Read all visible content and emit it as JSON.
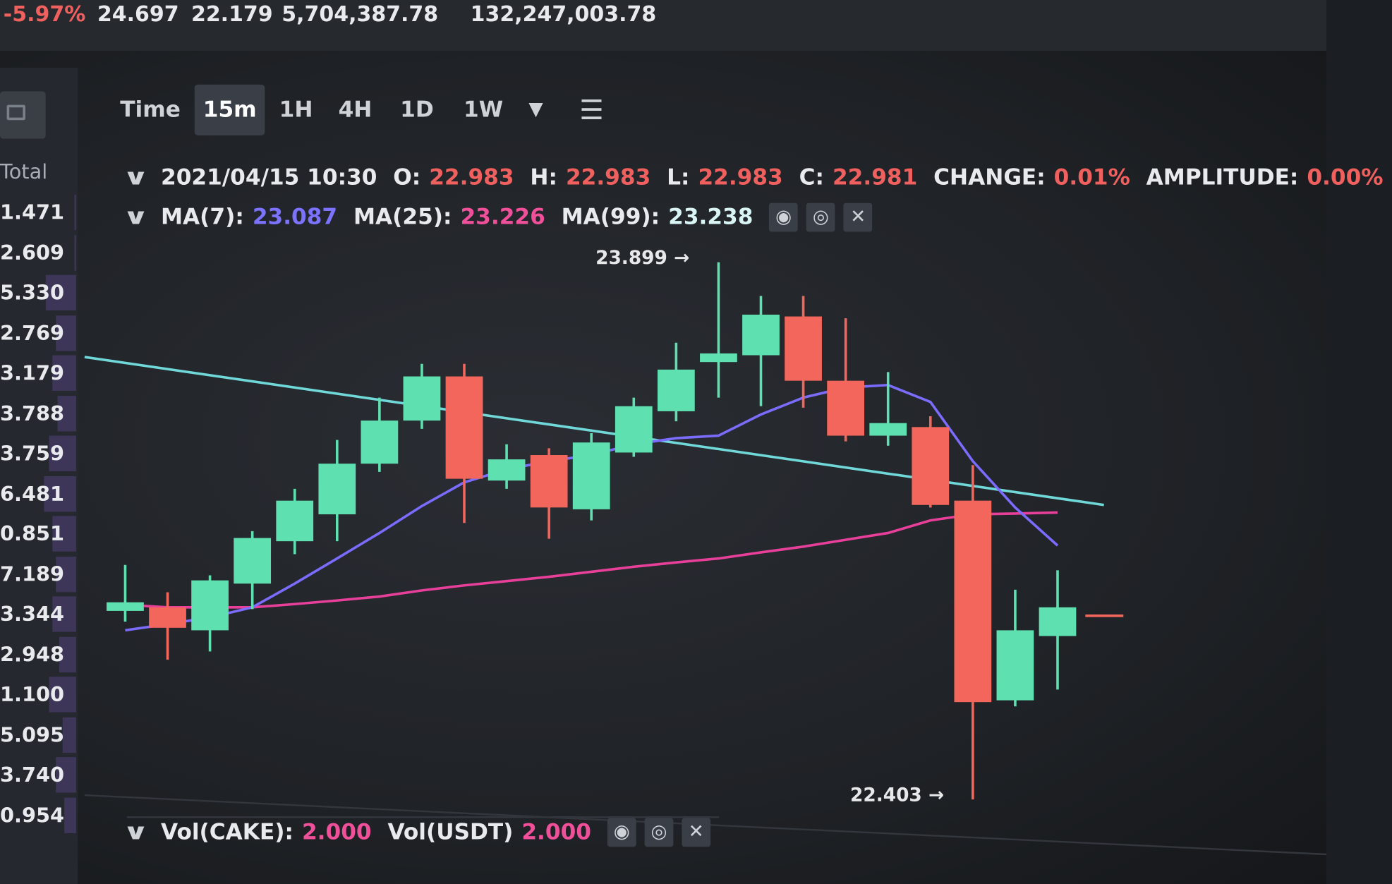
{
  "ticker": {
    "change_pct": "-5.97%",
    "high_24h": "24.697",
    "low_24h": "22.179",
    "volume_base": "5,704,387.78",
    "volume_quote": "132,247,003.78"
  },
  "orderbook": {
    "header": "Total",
    "rows": [
      "1.471",
      "2.609",
      "5.330",
      "2.769",
      "3.179",
      "3.788",
      "3.759",
      "6.481",
      "0.851",
      "7.189",
      "3.344",
      "2.948",
      "1.100",
      "5.095",
      "3.740",
      "0.954"
    ],
    "depth": [
      0.05,
      0.05,
      0.9,
      0.6,
      0.7,
      0.55,
      0.8,
      0.95,
      0.7,
      0.6,
      0.7,
      0.5,
      0.8,
      0.4,
      0.6,
      0.35
    ]
  },
  "toolbar": {
    "time": "Time",
    "intervals": [
      "15m",
      "1H",
      "4H",
      "1D",
      "1W"
    ],
    "active": "15m",
    "more_icon": "caret-down-icon",
    "settings_icon": "sliders-icon"
  },
  "ohlc": {
    "datetime": "2021/04/15 10:30",
    "o_label": "O:",
    "o": "22.983",
    "h_label": "H:",
    "h": "22.983",
    "l_label": "L:",
    "l": "22.983",
    "c_label": "C:",
    "c": "22.981",
    "change_label": "CHANGE:",
    "change": "0.01%",
    "amplitude_label": "AMPLITUDE:",
    "amplitude": "0.00%"
  },
  "ma": {
    "ma7_label": "MA(7):",
    "ma7": "23.087",
    "ma25_label": "MA(25):",
    "ma25": "23.226",
    "ma99_label": "MA(99):",
    "ma99": "23.238"
  },
  "vol": {
    "cake_label": "Vol(CAKE):",
    "cake": "2.000",
    "usdt_label": "Vol(USDT)",
    "usdt": "2.000"
  },
  "annotations": {
    "high": "23.899 →",
    "low": "22.403 →"
  },
  "colors": {
    "up": "#5fe0b0",
    "down": "#f2665c",
    "ma7": "#7b6cff",
    "ma25": "#e8409a",
    "ma99": "#70d8d8"
  },
  "chart_data": {
    "type": "candlestick",
    "interval": "15m",
    "candles": [
      [
        22.928,
        23.056,
        22.898,
        22.952
      ],
      [
        22.938,
        22.98,
        22.792,
        22.881
      ],
      [
        22.874,
        23.027,
        22.815,
        23.013
      ],
      [
        23.004,
        23.15,
        22.933,
        23.131
      ],
      [
        23.122,
        23.268,
        23.086,
        23.235
      ],
      [
        23.197,
        23.404,
        23.122,
        23.338
      ],
      [
        23.338,
        23.522,
        23.315,
        23.458
      ],
      [
        23.458,
        23.616,
        23.435,
        23.581
      ],
      [
        23.581,
        23.616,
        23.173,
        23.296
      ],
      [
        23.291,
        23.392,
        23.268,
        23.35
      ],
      [
        23.362,
        23.381,
        23.129,
        23.216
      ],
      [
        23.211,
        23.423,
        23.18,
        23.397
      ],
      [
        23.369,
        23.522,
        23.357,
        23.498
      ],
      [
        23.484,
        23.675,
        23.456,
        23.6
      ],
      [
        23.621,
        23.899,
        23.522,
        23.645
      ],
      [
        23.64,
        23.805,
        23.498,
        23.753
      ],
      [
        23.748,
        23.805,
        23.494,
        23.569
      ],
      [
        23.569,
        23.743,
        23.4,
        23.416
      ],
      [
        23.416,
        23.593,
        23.388,
        23.451
      ],
      [
        23.44,
        23.47,
        23.216,
        23.223
      ],
      [
        23.235,
        23.334,
        22.403,
        22.674
      ],
      [
        22.679,
        22.987,
        22.662,
        22.874
      ],
      [
        22.858,
        23.041,
        22.709,
        22.938
      ]
    ],
    "ma7": [
      22.874,
      22.891,
      22.91,
      22.938,
      23.004,
      23.074,
      23.145,
      23.22,
      23.286,
      23.322,
      23.345,
      23.362,
      23.392,
      23.409,
      23.416,
      23.475,
      23.522,
      23.55,
      23.557,
      23.51,
      23.345,
      23.216,
      23.11
    ],
    "ma25": [
      22.945,
      22.938,
      22.938,
      22.938,
      22.947,
      22.957,
      22.968,
      22.985,
      22.999,
      23.011,
      23.023,
      23.037,
      23.051,
      23.063,
      23.074,
      23.091,
      23.107,
      23.126,
      23.145,
      23.18,
      23.197,
      23.199,
      23.202
    ],
    "ma99": [
      23.635,
      23.223
    ],
    "max_price": 23.899,
    "min_price": 22.403
  }
}
